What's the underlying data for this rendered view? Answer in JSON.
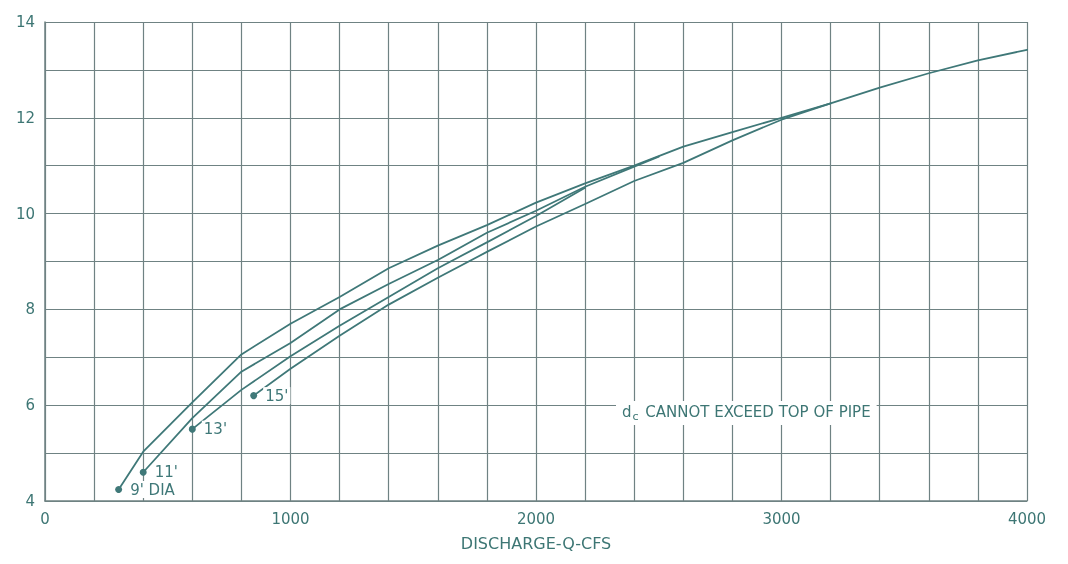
{
  "chart_data": {
    "type": "line",
    "xlabel": "DISCHARGE-Q-CFS",
    "xlim": [
      0,
      4000
    ],
    "xticks": [
      0,
      {
        "value": 200,
        "label": null
      },
      {
        "value": 400,
        "label": null
      },
      {
        "value": 600,
        "label": null
      },
      {
        "value": 800,
        "label": null
      },
      1000,
      {
        "value": 1200,
        "label": null
      },
      {
        "value": 1400,
        "label": null
      },
      {
        "value": 1600,
        "label": null
      },
      {
        "value": 1800,
        "label": null
      },
      2000,
      {
        "value": 2200,
        "label": null
      },
      {
        "value": 2400,
        "label": null
      },
      {
        "value": 2600,
        "label": null
      },
      {
        "value": 2800,
        "label": null
      },
      3000,
      {
        "value": 3200,
        "label": null
      },
      {
        "value": 3400,
        "label": null
      },
      {
        "value": 3600,
        "label": null
      },
      {
        "value": 3800,
        "label": null
      },
      4000
    ],
    "ylim": [
      4,
      14
    ],
    "yticks": [
      4,
      {
        "value": 5,
        "label": null
      },
      6,
      {
        "value": 7,
        "label": null
      },
      8,
      {
        "value": 9,
        "label": null
      },
      10,
      {
        "value": 11,
        "label": null
      },
      12,
      {
        "value": 13,
        "label": null
      },
      14
    ],
    "grid": true,
    "line_style": "solid",
    "annotations": [
      "d$_{c}$ CANNOT EXCEED TOP OF PIPE"
    ],
    "series": [
      {
        "name": "9' DIA",
        "color": "#3f7878",
        "x": [
          300,
          400,
          600,
          800,
          1000,
          1200,
          1400,
          1600,
          1800,
          2000,
          2200,
          2400,
          2600,
          2800,
          3000,
          3200,
          3400,
          3600,
          3800,
          4000
        ],
        "values": [
          4.24,
          5.03,
          6.06,
          7.06,
          7.7,
          8.26,
          8.86,
          9.33,
          9.76,
          10.23,
          10.63,
          11.0,
          11.4,
          11.7,
          12.0,
          12.3,
          12.63,
          12.93,
          13.2,
          13.42
        ]
      },
      {
        "name": "11'",
        "color": "#3f7878",
        "x": [
          400,
          600,
          800,
          1000,
          1200,
          1400,
          1600,
          1800,
          2000,
          2200,
          2400,
          2500
        ],
        "values": [
          4.6,
          5.73,
          6.7,
          7.3,
          8.0,
          8.53,
          9.03,
          9.6,
          10.06,
          10.56,
          10.98,
          11.19
        ]
      },
      {
        "name": "13'",
        "color": "#3f7878",
        "x": [
          600,
          800,
          1000,
          1200,
          1400,
          1600,
          1800,
          2000,
          2200
        ],
        "values": [
          5.5,
          6.32,
          7.02,
          7.66,
          8.26,
          8.86,
          9.4,
          9.95,
          10.54
        ]
      },
      {
        "name": "15'",
        "color": "#3f7878",
        "x": [
          850,
          1000,
          1200,
          1400,
          1600,
          1800,
          2000,
          2200,
          2400,
          2600,
          2800,
          3000,
          3200
        ],
        "values": [
          6.2,
          6.76,
          7.45,
          8.1,
          8.66,
          9.2,
          9.73,
          10.2,
          10.68,
          11.06,
          11.53,
          11.96,
          12.3
        ]
      }
    ]
  }
}
